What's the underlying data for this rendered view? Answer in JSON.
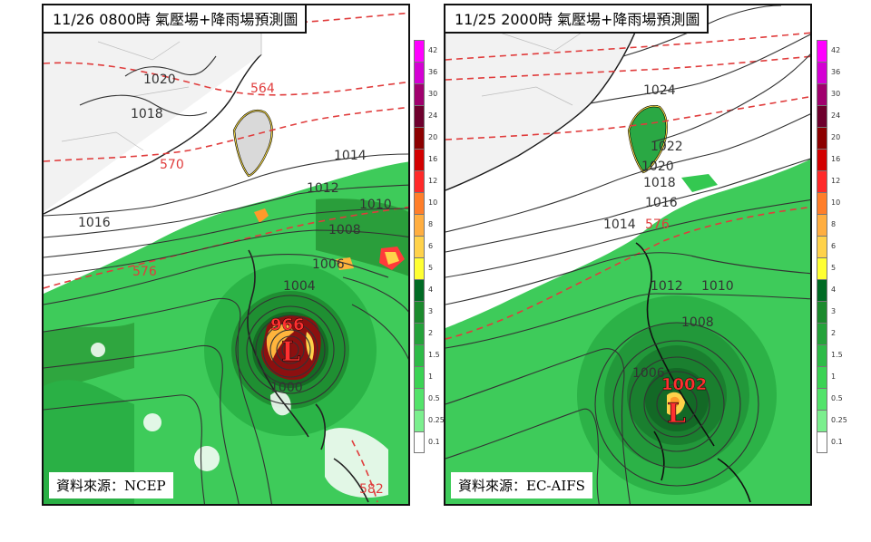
{
  "panels": [
    {
      "title": "11/26 0800時  氣壓場+降雨場預測圖",
      "source": "資料來源：NCEP",
      "low_center": {
        "symbol": "L",
        "pressure": "966"
      },
      "isobar_labels": [
        "1020",
        "1018",
        "1016",
        "1014",
        "1012",
        "1010",
        "1008",
        "1006",
        "1004",
        "1000"
      ],
      "height_labels": [
        "564",
        "570",
        "576",
        "582"
      ]
    },
    {
      "title": "11/25 2000時  氣壓場+降雨場預測圖",
      "source": "資料來源：EC-AIFS",
      "low_center": {
        "symbol": "L",
        "pressure": "1002"
      },
      "isobar_labels": [
        "1024",
        "1022",
        "1020",
        "1018",
        "1016",
        "1014",
        "1012",
        "1010",
        "1008",
        "1006"
      ],
      "height_labels": [
        "576"
      ]
    }
  ],
  "colorbar": {
    "labels": [
      "42",
      "36",
      "30",
      "24",
      "20",
      "16",
      "12",
      "10",
      "8",
      "6",
      "5",
      "4",
      "3",
      "2",
      "1.5",
      "1",
      "0.5",
      "0.25",
      "0.1"
    ],
    "colors": [
      "#ff00ff",
      "#d400d4",
      "#a0006e",
      "#6e002d",
      "#8c0000",
      "#d20000",
      "#ff2a2a",
      "#ff7e2a",
      "#ffae40",
      "#ffd24a",
      "#ffff33",
      "#006b24",
      "#1b8a2d",
      "#24a23a",
      "#2dbb47",
      "#3bd354",
      "#52e36a",
      "#7bef8e",
      "#ffffff"
    ]
  }
}
